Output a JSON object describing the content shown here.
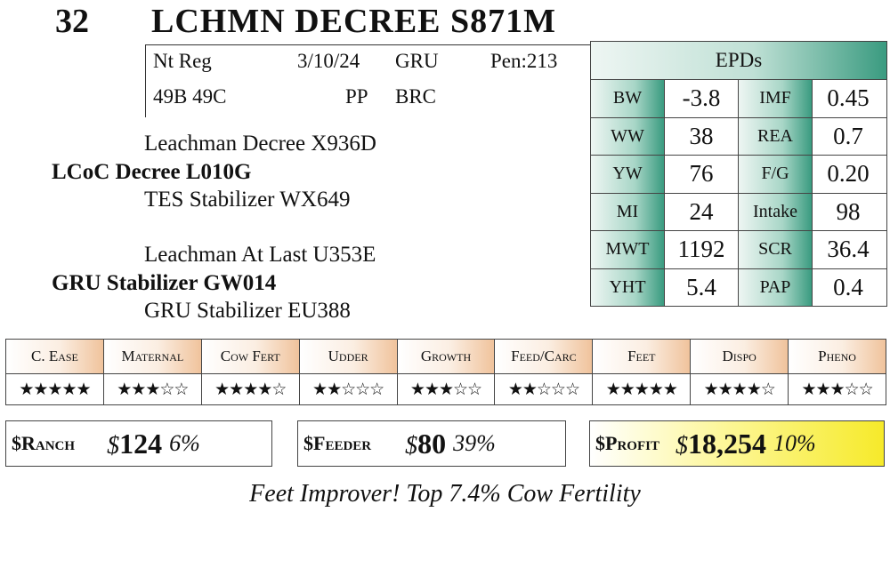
{
  "header": {
    "lot_number": "32",
    "animal_name": "LCHMN DECREE S871M"
  },
  "info": {
    "registration": "Nt Reg",
    "birth_date": "3/10/24",
    "owner": "GRU",
    "pen": "Pen:213",
    "tattoo": "49B 49C",
    "polled": "PP",
    "breeder": "BRC"
  },
  "pedigree": {
    "sire_sire": "Leachman Decree X936D",
    "sire": "LCoC Decree L010G",
    "sire_dam": "TES Stabilizer WX649",
    "dam_sire": "Leachman At Last U353E",
    "dam": "GRU Stabilizer GW014",
    "dam_dam": "GRU Stabilizer EU388"
  },
  "epds": {
    "title": "EPDs",
    "rows": [
      {
        "label1": "BW",
        "value1": "-3.8",
        "label2": "IMF",
        "value2": "0.45"
      },
      {
        "label1": "WW",
        "value1": "38",
        "label2": "REA",
        "value2": "0.7"
      },
      {
        "label1": "YW",
        "value1": "76",
        "label2": "F/G",
        "value2": "0.20"
      },
      {
        "label1": "MI",
        "value1": "24",
        "label2": "Intake",
        "value2": "98"
      },
      {
        "label1": "MWT",
        "value1": "1192",
        "label2": "SCR",
        "value2": "36.4"
      },
      {
        "label1": "YHT",
        "value1": "5.4",
        "label2": "PAP",
        "value2": "0.4"
      }
    ]
  },
  "ratings": [
    {
      "label": "C. Ease",
      "stars": "★★★★★"
    },
    {
      "label": "Maternal",
      "stars": "★★★☆☆"
    },
    {
      "label": "Cow Fert",
      "stars": "★★★★☆"
    },
    {
      "label": "Udder",
      "stars": "★★☆☆☆"
    },
    {
      "label": "Growth",
      "stars": "★★★☆☆"
    },
    {
      "label": "Feed/Carc",
      "stars": "★★☆☆☆"
    },
    {
      "label": "Feet",
      "stars": "★★★★★"
    },
    {
      "label": "Dispo",
      "stars": "★★★★☆"
    },
    {
      "label": "Pheno",
      "stars": "★★★☆☆"
    }
  ],
  "indexes": {
    "ranch": {
      "label": "$Ranch",
      "currency": "$",
      "value": "124",
      "percent": "6%"
    },
    "feeder": {
      "label": "$Feeder",
      "currency": "$",
      "value": "80",
      "percent": "39%"
    },
    "profit": {
      "label": "$Profit",
      "currency": "$",
      "value": "18,254",
      "percent": "10%"
    }
  },
  "note": "Feet Improver! Top 7.4% Cow Fertility"
}
